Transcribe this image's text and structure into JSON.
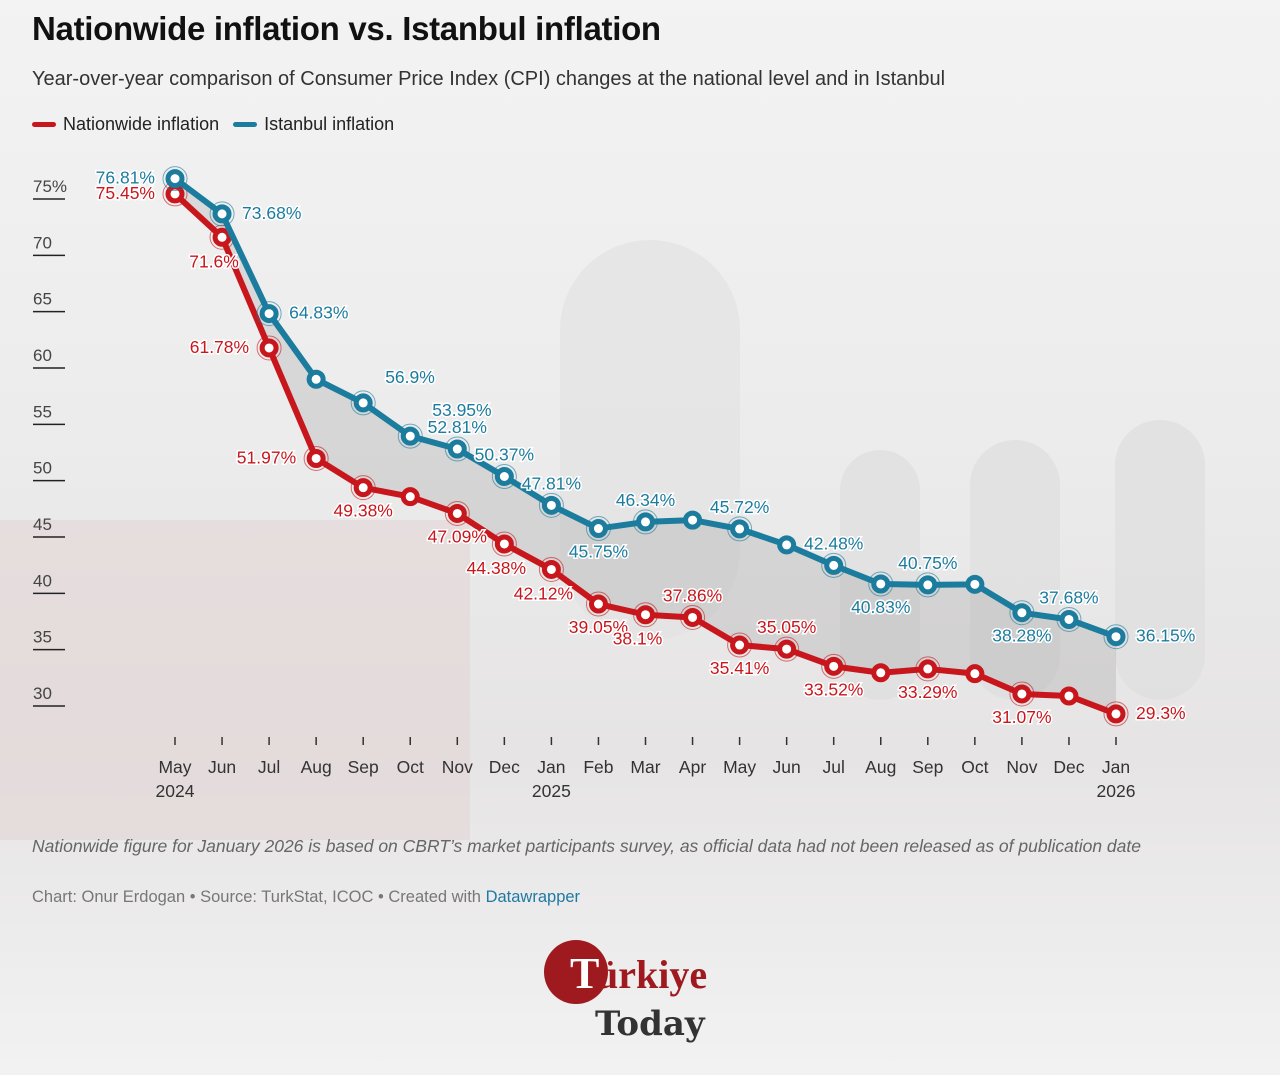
{
  "title": "Nationwide inflation vs. Istanbul inflation",
  "subtitle": "Year-over-year comparison of Consumer Price Index (CPI) changes at the national level and in Istanbul",
  "legend": [
    {
      "label": "Nationwide inflation",
      "color": "#c8161d"
    },
    {
      "label": "Istanbul inflation",
      "color": "#1b7c9e"
    }
  ],
  "note": "Nationwide figure for January 2026 is based on CBRT’s market participants survey, as official data had not been released as of publication date",
  "credit": {
    "prefix": "Chart: Onur Erdogan • Source: TurkStat, ICOC • Created with ",
    "link": "Datawrapper"
  },
  "logo": {
    "line1": "Türkiye",
    "line2": "Today"
  },
  "chart_data": {
    "type": "line",
    "title": "Nationwide inflation vs. Istanbul inflation",
    "x": [
      "May 2024",
      "Jun",
      "Jul",
      "Aug",
      "Sep",
      "Oct",
      "Nov",
      "Dec",
      "Jan 2025",
      "Feb",
      "Mar",
      "Apr",
      "May",
      "Jun",
      "Jul",
      "Aug",
      "Sep",
      "Oct",
      "Nov",
      "Dec",
      "Jan 2026"
    ],
    "x_tick_labels": [
      [
        "May",
        "2024"
      ],
      [
        "Jun",
        ""
      ],
      [
        "Jul",
        ""
      ],
      [
        "Aug",
        ""
      ],
      [
        "Sep",
        ""
      ],
      [
        "Oct",
        ""
      ],
      [
        "Nov",
        ""
      ],
      [
        "Dec",
        ""
      ],
      [
        "Jan",
        "2025"
      ],
      [
        "Feb",
        ""
      ],
      [
        "Mar",
        ""
      ],
      [
        "Apr",
        ""
      ],
      [
        "May",
        ""
      ],
      [
        "Jun",
        ""
      ],
      [
        "Jul",
        ""
      ],
      [
        "Aug",
        ""
      ],
      [
        "Sep",
        ""
      ],
      [
        "Oct",
        ""
      ],
      [
        "Nov",
        ""
      ],
      [
        "Dec",
        ""
      ],
      [
        "Jan",
        "2026"
      ]
    ],
    "y_ticks": [
      "75%",
      "70",
      "65",
      "60",
      "55",
      "50",
      "45",
      "40",
      "35",
      "30"
    ],
    "y_tick_values": [
      75,
      70,
      65,
      60,
      55,
      50,
      45,
      40,
      35,
      30
    ],
    "ylim": [
      30,
      75
    ],
    "grid": false,
    "legend_position": "top-left",
    "series": [
      {
        "name": "Nationwide inflation",
        "color": "#c8161d",
        "values": [
          75.45,
          71.6,
          61.78,
          51.97,
          49.38,
          48.58,
          47.09,
          44.38,
          42.12,
          39.05,
          38.1,
          37.86,
          35.41,
          35.05,
          33.52,
          32.95,
          33.29,
          32.87,
          31.07,
          30.89,
          29.3
        ],
        "labels": [
          "75.45%",
          "71.6%",
          "61.78%",
          "51.97%",
          "49.38%",
          "",
          "47.09%",
          "44.38%",
          "42.12%",
          "39.05%",
          "38.1%",
          "37.86%",
          "35.41%",
          "35.05%",
          "33.52%",
          "",
          "33.29%",
          "",
          "31.07%",
          "",
          "29.3%"
        ]
      },
      {
        "name": "Istanbul inflation",
        "color": "#1b7c9e",
        "values": [
          76.81,
          73.68,
          64.83,
          59.0,
          56.9,
          53.95,
          52.81,
          50.37,
          47.81,
          45.75,
          46.34,
          46.5,
          45.72,
          44.3,
          42.48,
          40.83,
          40.75,
          40.8,
          38.28,
          37.68,
          36.15
        ],
        "labels": [
          "76.81%",
          "73.68%",
          "64.83%",
          "",
          "56.9%",
          "53.95%",
          "52.81%",
          "50.37%",
          "47.81%",
          "45.75%",
          "46.34%",
          "",
          "45.72%",
          "",
          "42.48%",
          "40.83%",
          "40.75%",
          "",
          "38.28%",
          "37.68%",
          "36.15%"
        ]
      }
    ]
  }
}
